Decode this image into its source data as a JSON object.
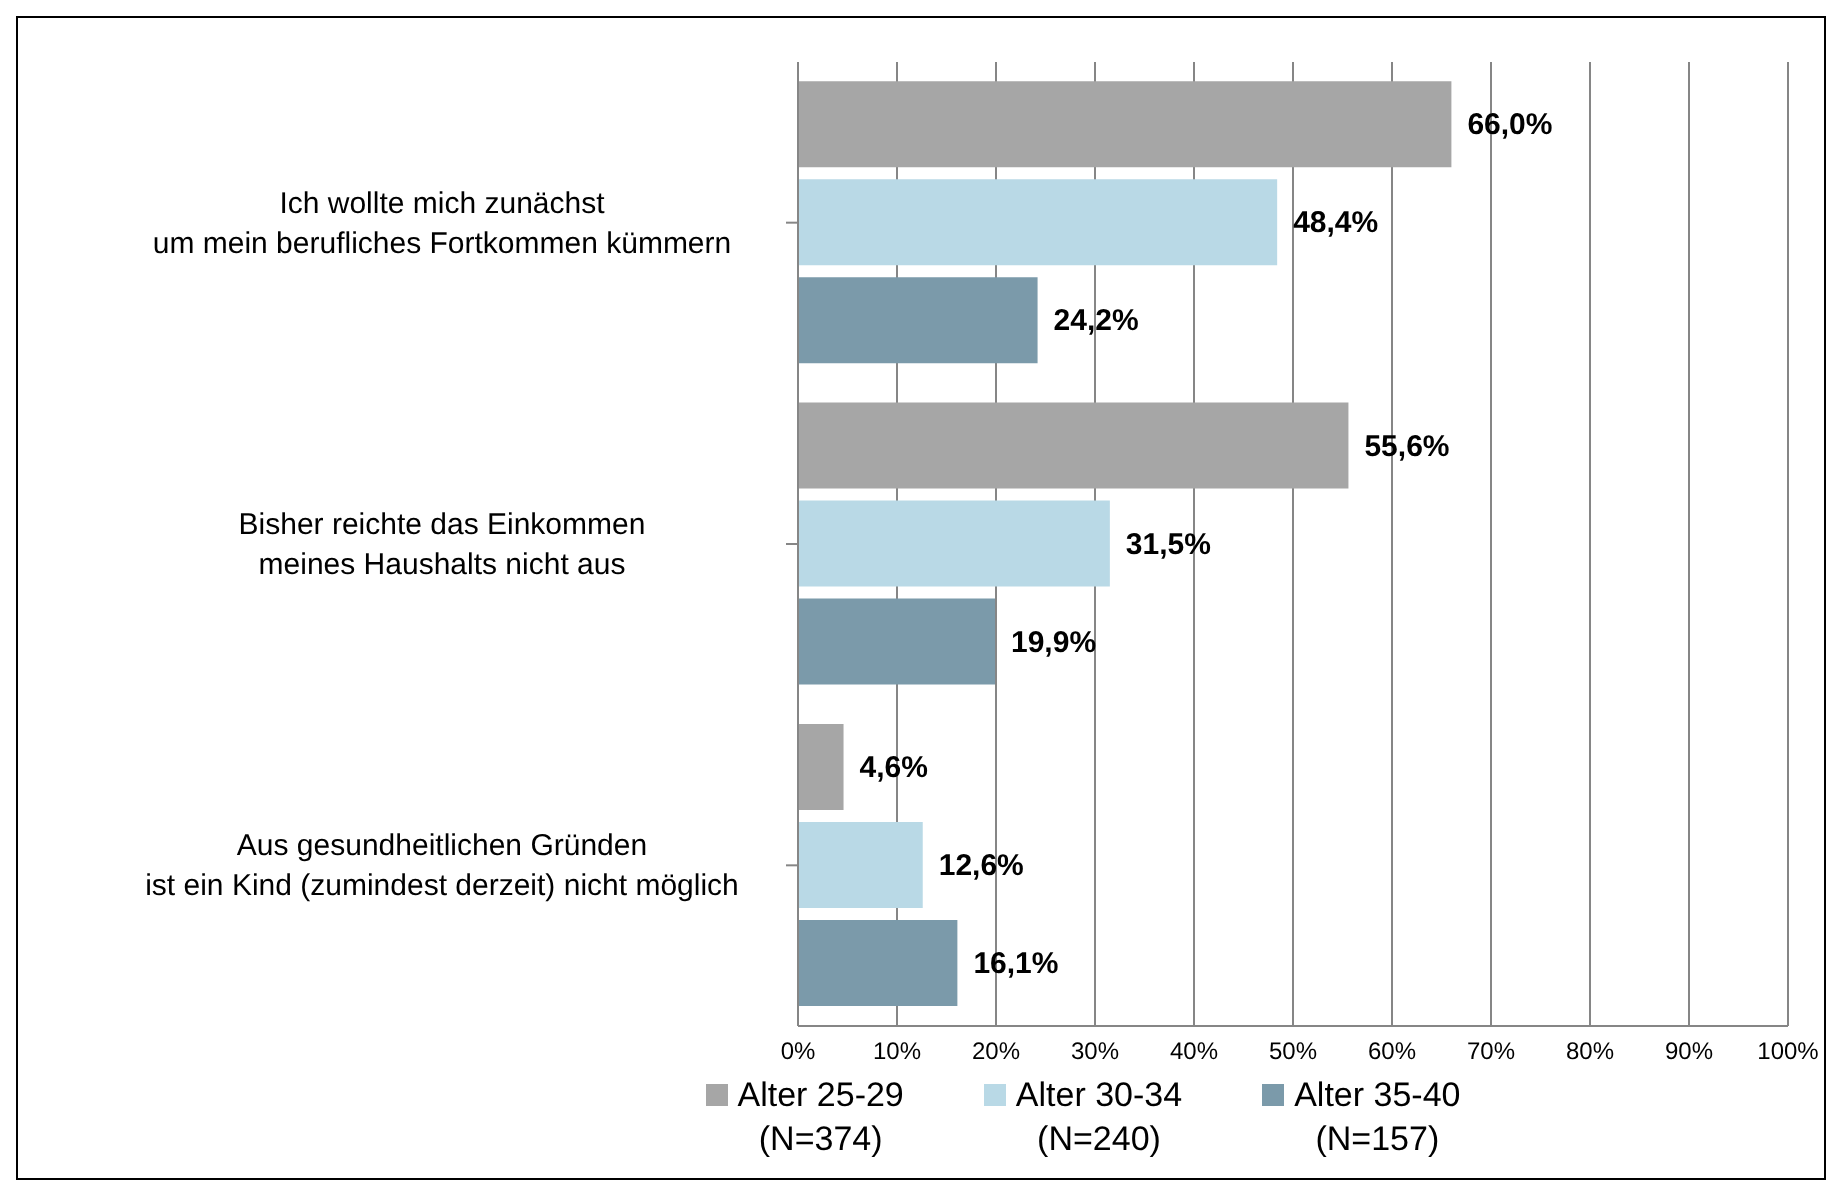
{
  "chart_data": {
    "type": "bar",
    "orientation": "horizontal",
    "categories": [
      "Ich wollte mich zunächst\num mein berufliches Fortkommen kümmern",
      "Bisher reichte das Einkommen\nmeines Haushalts nicht aus",
      "Aus gesundheitlichen Gründen\nist ein Kind (zumindest derzeit) nicht möglich"
    ],
    "series": [
      {
        "name": "Alter 25-29\n(N=374)",
        "color": "#a6a6a6",
        "values": [
          66.0,
          55.6,
          4.6
        ],
        "value_labels": [
          "66,0%",
          "55,6%",
          "4,6%"
        ]
      },
      {
        "name": "Alter 30-34\n(N=240)",
        "color": "#b9d9e6",
        "values": [
          48.4,
          31.5,
          12.6
        ],
        "value_labels": [
          "48,4%",
          "31,5%",
          "12,6%"
        ]
      },
      {
        "name": "Alter 35-40\n(N=157)",
        "color": "#7b9aaa",
        "values": [
          24.2,
          19.9,
          16.1
        ],
        "value_labels": [
          "24,2%",
          "19,9%",
          "16,1%"
        ]
      }
    ],
    "xlim": [
      0,
      100
    ],
    "xticks": [
      {
        "value": 0,
        "label": "0%"
      },
      {
        "value": 10,
        "label": "10%"
      },
      {
        "value": 20,
        "label": "20%"
      },
      {
        "value": 30,
        "label": "30%"
      },
      {
        "value": 40,
        "label": "40%"
      },
      {
        "value": 50,
        "label": "50%"
      },
      {
        "value": 60,
        "label": "60%"
      },
      {
        "value": 70,
        "label": "70%"
      },
      {
        "value": 80,
        "label": "80%"
      },
      {
        "value": 90,
        "label": "90%"
      },
      {
        "value": 100,
        "label": "100%"
      }
    ],
    "grid": "x",
    "legend": "bottom"
  }
}
